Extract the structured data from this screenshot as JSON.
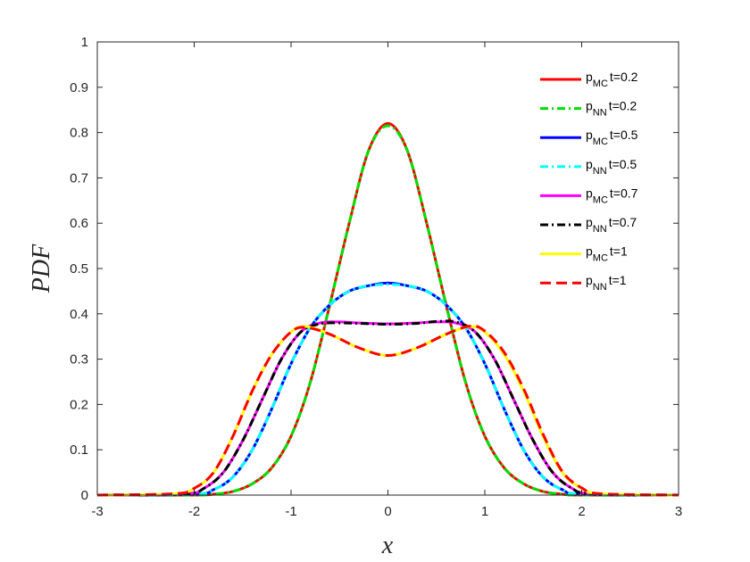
{
  "chart_data": {
    "type": "line",
    "xlabel": "x",
    "ylabel": "PDF",
    "xlim": [
      -3,
      3
    ],
    "ylim": [
      0,
      1
    ],
    "xticks": [
      "-3",
      "-2",
      "-1",
      "0",
      "1",
      "2",
      "3"
    ],
    "yticks": [
      "0",
      "0.1",
      "0.2",
      "0.3",
      "0.4",
      "0.5",
      "0.6",
      "0.7",
      "0.8",
      "0.9",
      "1"
    ],
    "grid": false,
    "legend_position": "top-right",
    "series": [
      {
        "name": "p_MC t=0.2",
        "base": "p",
        "sub": "MC",
        "t": "t=0.2",
        "color": "#ff0000",
        "dash": "solid",
        "x": [
          -3,
          -2,
          -1.8,
          -1.6,
          -1.4,
          -1.2,
          -1.0,
          -0.8,
          -0.6,
          -0.4,
          -0.2,
          0,
          0.2,
          0.4,
          0.6,
          0.8,
          1.0,
          1.2,
          1.4,
          1.6,
          1.8,
          2,
          3
        ],
        "y": [
          0,
          0,
          0.002,
          0.008,
          0.025,
          0.06,
          0.13,
          0.25,
          0.42,
          0.6,
          0.76,
          0.82,
          0.76,
          0.6,
          0.42,
          0.25,
          0.13,
          0.06,
          0.025,
          0.008,
          0.002,
          0,
          0
        ]
      },
      {
        "name": "p_NN t=0.2",
        "base": "p",
        "sub": "NN",
        "t": "t=0.2",
        "color": "#00e000",
        "dash": "dashdot",
        "x": [
          -3,
          -2,
          -1.8,
          -1.6,
          -1.4,
          -1.2,
          -1.0,
          -0.8,
          -0.6,
          -0.4,
          -0.2,
          0,
          0.2,
          0.4,
          0.6,
          0.8,
          1.0,
          1.2,
          1.4,
          1.6,
          1.8,
          2,
          3
        ],
        "y": [
          0,
          0,
          0.002,
          0.008,
          0.025,
          0.06,
          0.13,
          0.25,
          0.42,
          0.6,
          0.76,
          0.815,
          0.76,
          0.6,
          0.42,
          0.25,
          0.13,
          0.06,
          0.025,
          0.008,
          0.002,
          0,
          0
        ]
      },
      {
        "name": "p_MC t=0.5",
        "base": "p",
        "sub": "MC",
        "t": "t=0.5",
        "color": "#0000ff",
        "dash": "solid",
        "x": [
          -3,
          -2,
          -1.8,
          -1.6,
          -1.4,
          -1.2,
          -1.0,
          -0.8,
          -0.6,
          -0.4,
          -0.2,
          0,
          0.2,
          0.4,
          0.6,
          0.8,
          1.0,
          1.2,
          1.4,
          1.6,
          1.8,
          2,
          3
        ],
        "y": [
          0,
          0.002,
          0.012,
          0.04,
          0.1,
          0.19,
          0.29,
          0.37,
          0.42,
          0.45,
          0.462,
          0.468,
          0.462,
          0.45,
          0.42,
          0.37,
          0.29,
          0.19,
          0.1,
          0.04,
          0.012,
          0.002,
          0
        ]
      },
      {
        "name": "p_NN t=0.5",
        "base": "p",
        "sub": "NN",
        "t": "t=0.5",
        "color": "#00ffff",
        "dash": "dashdot",
        "x": [
          -3,
          -2,
          -1.8,
          -1.6,
          -1.4,
          -1.2,
          -1.0,
          -0.8,
          -0.6,
          -0.4,
          -0.2,
          0,
          0.2,
          0.4,
          0.6,
          0.8,
          1.0,
          1.2,
          1.4,
          1.6,
          1.8,
          2,
          3
        ],
        "y": [
          0,
          0.002,
          0.012,
          0.04,
          0.1,
          0.19,
          0.29,
          0.37,
          0.42,
          0.45,
          0.462,
          0.465,
          0.462,
          0.45,
          0.42,
          0.37,
          0.29,
          0.19,
          0.1,
          0.04,
          0.012,
          0.002,
          0
        ]
      },
      {
        "name": "p_MC t=0.7",
        "base": "p",
        "sub": "MC",
        "t": "t=0.7",
        "color": "#ff00ff",
        "dash": "solid",
        "x": [
          -3,
          -2.1,
          -1.9,
          -1.7,
          -1.5,
          -1.3,
          -1.1,
          -0.9,
          -0.7,
          -0.5,
          -0.3,
          0,
          0.3,
          0.5,
          0.7,
          0.9,
          1.1,
          1.3,
          1.5,
          1.7,
          1.9,
          2.1,
          3
        ],
        "y": [
          0,
          0.003,
          0.015,
          0.05,
          0.12,
          0.21,
          0.3,
          0.36,
          0.38,
          0.382,
          0.38,
          0.378,
          0.38,
          0.382,
          0.38,
          0.36,
          0.3,
          0.21,
          0.12,
          0.05,
          0.015,
          0.003,
          0
        ]
      },
      {
        "name": "p_NN t=0.7",
        "base": "p",
        "sub": "NN",
        "t": "t=0.7",
        "color": "#000000",
        "dash": "dashdot",
        "x": [
          -3,
          -2.1,
          -1.9,
          -1.7,
          -1.5,
          -1.3,
          -1.1,
          -0.9,
          -0.7,
          -0.5,
          -0.3,
          0,
          0.3,
          0.5,
          0.7,
          0.9,
          1.1,
          1.3,
          1.5,
          1.7,
          1.9,
          2.1,
          3
        ],
        "y": [
          0,
          0.003,
          0.015,
          0.05,
          0.12,
          0.21,
          0.3,
          0.36,
          0.378,
          0.38,
          0.379,
          0.377,
          0.379,
          0.383,
          0.382,
          0.36,
          0.3,
          0.21,
          0.12,
          0.05,
          0.015,
          0.003,
          0
        ]
      },
      {
        "name": "p_MC t=1",
        "base": "p",
        "sub": "MC",
        "t": "t=1",
        "color": "#ffff00",
        "dash": "solid",
        "x": [
          -3,
          -2.2,
          -2.0,
          -1.8,
          -1.6,
          -1.4,
          -1.2,
          -1.0,
          -0.85,
          -0.6,
          -0.3,
          0,
          0.3,
          0.6,
          0.85,
          1.0,
          1.2,
          1.4,
          1.6,
          1.8,
          2.0,
          2.2,
          3
        ],
        "y": [
          0,
          0.003,
          0.015,
          0.05,
          0.13,
          0.23,
          0.31,
          0.36,
          0.372,
          0.355,
          0.325,
          0.308,
          0.325,
          0.355,
          0.372,
          0.36,
          0.31,
          0.23,
          0.13,
          0.05,
          0.015,
          0.003,
          0
        ]
      },
      {
        "name": "p_NN t=1",
        "base": "p",
        "sub": "NN",
        "t": "t=1",
        "color": "#ff0000",
        "dash": "dashed",
        "x": [
          -3,
          -2.2,
          -2.0,
          -1.8,
          -1.6,
          -1.4,
          -1.2,
          -1.0,
          -0.85,
          -0.6,
          -0.3,
          0,
          0.3,
          0.6,
          0.85,
          1.0,
          1.2,
          1.4,
          1.6,
          1.8,
          2.0,
          2.2,
          3
        ],
        "y": [
          0,
          0.003,
          0.015,
          0.05,
          0.13,
          0.23,
          0.31,
          0.36,
          0.37,
          0.355,
          0.325,
          0.308,
          0.325,
          0.355,
          0.373,
          0.362,
          0.315,
          0.235,
          0.135,
          0.052,
          0.016,
          0.003,
          0
        ]
      }
    ]
  }
}
